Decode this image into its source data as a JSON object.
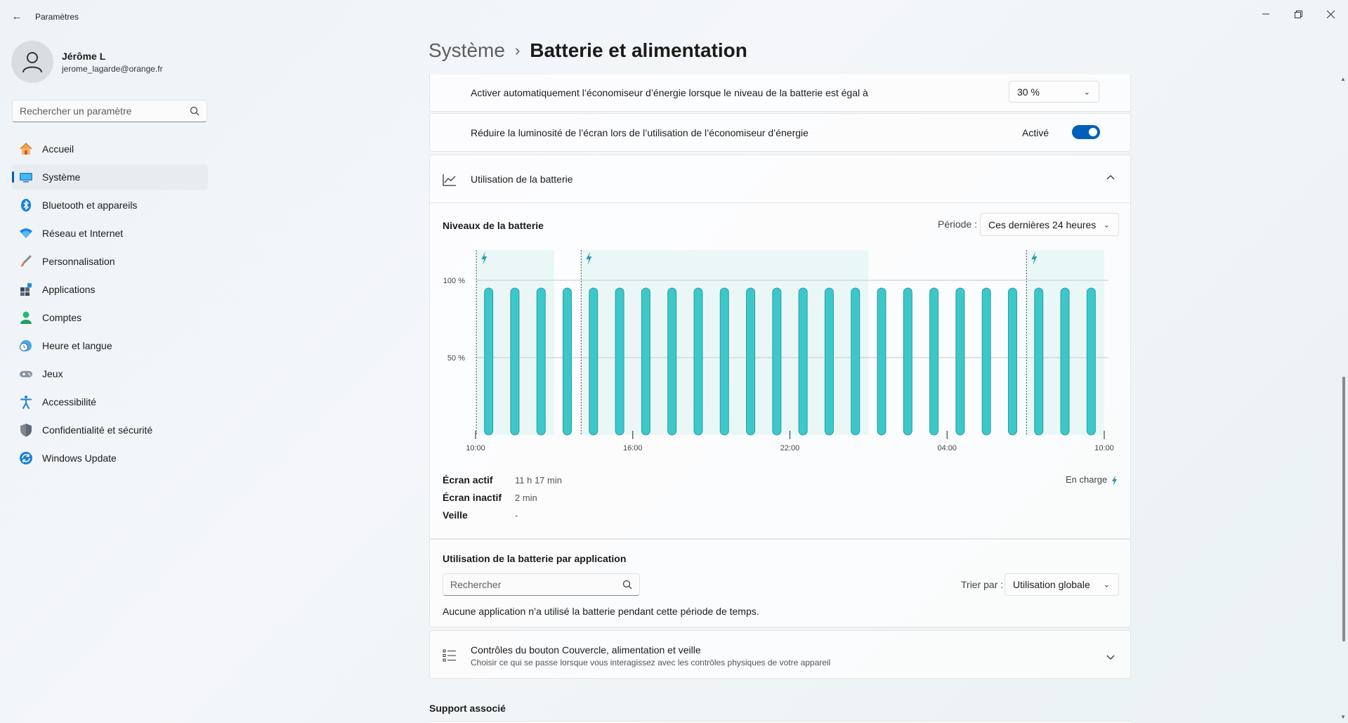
{
  "window": {
    "title": "Paramètres",
    "controls": [
      "minimize-icon",
      "restore-icon",
      "close-icon"
    ]
  },
  "user": {
    "name": "Jérôme L",
    "email": "jerome_lagarde@orange.fr"
  },
  "sidebar": {
    "search_placeholder": "Rechercher un paramètre",
    "items": [
      {
        "label": "Accueil",
        "icon": "home-icon",
        "active": false
      },
      {
        "label": "Système",
        "icon": "system-icon",
        "active": true
      },
      {
        "label": "Bluetooth et appareils",
        "icon": "bluetooth-icon",
        "active": false
      },
      {
        "label": "Réseau et Internet",
        "icon": "wifi-icon",
        "active": false
      },
      {
        "label": "Personnalisation",
        "icon": "brush-icon",
        "active": false
      },
      {
        "label": "Applications",
        "icon": "apps-icon",
        "active": false
      },
      {
        "label": "Comptes",
        "icon": "account-icon",
        "active": false
      },
      {
        "label": "Heure et langue",
        "icon": "clock-globe-icon",
        "active": false
      },
      {
        "label": "Jeux",
        "icon": "gamepad-icon",
        "active": false
      },
      {
        "label": "Accessibilité",
        "icon": "accessibility-icon",
        "active": false
      },
      {
        "label": "Confidentialité et sécurité",
        "icon": "shield-icon",
        "active": false
      },
      {
        "label": "Windows Update",
        "icon": "update-icon",
        "active": false
      }
    ]
  },
  "breadcrumb": {
    "parent": "Système",
    "separator": "›",
    "current": "Batterie et alimentation"
  },
  "energy_saver": {
    "auto_label": "Activer automatiquement l’économiseur d’énergie lorsque le niveau de la batterie est égal à",
    "auto_value": "30 %",
    "brightness_label": "Réduire la luminosité de l’écran lors de l’utilisation de l’économiseur d’énergie",
    "brightness_state": "Activé"
  },
  "battery_usage": {
    "header": "Utilisation de la batterie",
    "levels_title": "Niveaux de la batterie",
    "period_label": "Période :",
    "period_value": "Ces dernières 24 heures",
    "stats": [
      {
        "label": "Écran actif",
        "value": "11 h 17 min"
      },
      {
        "label": "Écran inactif",
        "value": "2 min"
      },
      {
        "label": "Veille",
        "value": "-"
      }
    ],
    "charging_legend": "En charge"
  },
  "chart_data": {
    "type": "bar",
    "title": "Niveaux de la batterie",
    "y_ticks": [
      "50 %",
      "100 %"
    ],
    "ylim": [
      0,
      100
    ],
    "x_tick_labels": [
      "10:00",
      "16:00",
      "22:00",
      "04:00",
      "10:00"
    ],
    "x_range_hours": [
      0,
      24
    ],
    "values": [
      95,
      95,
      95,
      95,
      95,
      95,
      95,
      95,
      95,
      95,
      95,
      95,
      95,
      95,
      95,
      95,
      95,
      95,
      95,
      95,
      95,
      95,
      95,
      95
    ],
    "charging_markers_hours": [
      0.3,
      4.3,
      21.3
    ],
    "charging_periods_hours": [
      [
        0,
        3
      ],
      [
        4,
        15
      ],
      [
        21,
        24
      ]
    ],
    "series_color": "#3cc8c8",
    "charging_color": "#2a9ba8"
  },
  "app_usage": {
    "title": "Utilisation de la batterie par application",
    "search_placeholder": "Rechercher",
    "sort_label": "Trier par :",
    "sort_value": "Utilisation globale",
    "empty_message": "Aucune application n’a utilisé la batterie pendant cette période de temps."
  },
  "lid_controls": {
    "title": "Contrôles du bouton Couvercle, alimentation et veille",
    "subtitle": "Choisir ce qui se passe lorsque vous interagissez avec les contrôles physiques de votre appareil"
  },
  "related_support": {
    "title": "Support associé"
  },
  "colors": {
    "accent": "#005fb8",
    "battery": "#3cc8c8"
  }
}
